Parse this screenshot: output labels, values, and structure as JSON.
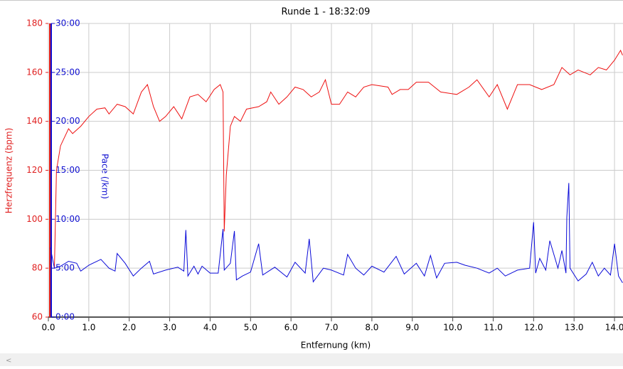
{
  "chart_data": {
    "type": "line",
    "title": "Runde 1 - 18:32:09",
    "xlabel": "Entfernung (km)",
    "ylabel": "Herzfrequenz (bpm)",
    "y2label": "Pace (/km)",
    "xlim": [
      0,
      14.21
    ],
    "ylim": [
      60,
      180
    ],
    "y2lim": [
      0,
      30
    ],
    "grid": true,
    "xticks": [
      {
        "value": 0,
        "label": "0.0"
      },
      {
        "value": 1,
        "label": "1.0"
      },
      {
        "value": 2,
        "label": "2.0"
      },
      {
        "value": 3,
        "label": "3.0"
      },
      {
        "value": 4,
        "label": "4.0"
      },
      {
        "value": 5,
        "label": "5.0"
      },
      {
        "value": 6,
        "label": "6.0"
      },
      {
        "value": 7,
        "label": "7.0"
      },
      {
        "value": 8,
        "label": "8.0"
      },
      {
        "value": 9,
        "label": "9.0"
      },
      {
        "value": 10,
        "label": "10.0"
      },
      {
        "value": 11,
        "label": "11.0"
      },
      {
        "value": 12,
        "label": "12.0"
      },
      {
        "value": 13,
        "label": "13.0"
      },
      {
        "value": 14,
        "label": "14.0"
      }
    ],
    "yticks": [
      60,
      80,
      100,
      120,
      140,
      160,
      180
    ],
    "y2ticks": [
      {
        "value": 0,
        "label": "0:00"
      },
      {
        "value": 5,
        "label": "5:00"
      },
      {
        "value": 10,
        "label": "10:00"
      },
      {
        "value": 15,
        "label": "15:00"
      },
      {
        "value": 20,
        "label": "20:00"
      },
      {
        "value": 25,
        "label": "25:00"
      },
      {
        "value": 30,
        "label": "30:00"
      }
    ],
    "ycolor": "#e02020",
    "y2color": "#1010d0",
    "series": [
      {
        "color": "#ee1111",
        "axis": "y",
        "x": [
          0.15,
          0.2,
          0.3,
          0.5,
          0.6,
          0.8,
          1.0,
          1.2,
          1.4,
          1.5,
          1.7,
          1.9,
          2.1,
          2.3,
          2.45,
          2.6,
          2.75,
          2.9,
          3.1,
          3.3,
          3.5,
          3.7,
          3.9,
          4.1,
          4.25,
          4.32,
          4.35,
          4.4,
          4.5,
          4.6,
          4.75,
          4.9,
          5.2,
          5.4,
          5.5,
          5.7,
          5.9,
          6.1,
          6.3,
          6.5,
          6.7,
          6.85,
          7.0,
          7.2,
          7.4,
          7.6,
          7.8,
          8.0,
          8.4,
          8.5,
          8.7,
          8.9,
          9.1,
          9.4,
          9.7,
          10.1,
          10.4,
          10.6,
          10.9,
          11.1,
          11.35,
          11.6,
          11.9,
          12.2,
          12.5,
          12.7,
          12.9,
          13.1,
          13.4,
          13.6,
          13.8,
          14.0,
          14.15,
          14.2
        ],
        "values": [
          80,
          120,
          130,
          137,
          135,
          138,
          142,
          145,
          145.5,
          143,
          147,
          146,
          143,
          152,
          155,
          146,
          140,
          142,
          146,
          141,
          150,
          151,
          148,
          153,
          155,
          152,
          95,
          118,
          138,
          142,
          140,
          145,
          146,
          148,
          152,
          147,
          150,
          154,
          153,
          150,
          152,
          157,
          147,
          147,
          152,
          150,
          154,
          155,
          154,
          151,
          153,
          153,
          156,
          156,
          152,
          151,
          154,
          157,
          150,
          155,
          145,
          155,
          155,
          153,
          155,
          162,
          159,
          161,
          159,
          162,
          161,
          165,
          169,
          167
        ]
      },
      {
        "color": "#0a0ad8",
        "axis": "y2",
        "x": [
          0.05,
          0.15,
          0.3,
          0.5,
          0.7,
          0.8,
          1.0,
          1.3,
          1.5,
          1.65,
          1.7,
          1.9,
          2.1,
          2.3,
          2.5,
          2.6,
          2.9,
          3.2,
          3.35,
          3.4,
          3.45,
          3.6,
          3.7,
          3.8,
          4.0,
          4.2,
          4.32,
          4.35,
          4.5,
          4.6,
          4.65,
          4.8,
          5.0,
          5.2,
          5.3,
          5.6,
          5.9,
          6.1,
          6.35,
          6.45,
          6.55,
          6.8,
          7.0,
          7.3,
          7.4,
          7.6,
          7.8,
          8.0,
          8.3,
          8.6,
          8.8,
          9.1,
          9.3,
          9.45,
          9.6,
          9.8,
          10.1,
          10.3,
          10.6,
          10.9,
          11.1,
          11.3,
          11.6,
          11.9,
          12.0,
          12.05,
          12.15,
          12.3,
          12.4,
          12.6,
          12.7,
          12.8,
          12.82,
          12.87,
          12.9,
          13.1,
          13.3,
          13.45,
          13.6,
          13.75,
          13.9,
          14.0,
          14.1,
          14.2
        ],
        "values": [
          7.1,
          5.0,
          5.2,
          5.7,
          5.5,
          4.7,
          5.3,
          5.9,
          5.0,
          4.7,
          6.5,
          5.5,
          4.2,
          5.0,
          5.7,
          4.4,
          4.8,
          5.1,
          4.7,
          8.9,
          4.2,
          5.2,
          4.4,
          5.2,
          4.5,
          4.5,
          9.0,
          4.8,
          5.5,
          8.8,
          3.8,
          4.2,
          4.6,
          7.5,
          4.3,
          5.1,
          4.1,
          5.6,
          4.5,
          8.0,
          3.6,
          5.0,
          4.8,
          4.3,
          6.4,
          5.0,
          4.3,
          5.2,
          4.6,
          6.2,
          4.4,
          5.5,
          4.2,
          6.3,
          4.0,
          5.5,
          5.6,
          5.3,
          5.0,
          4.5,
          5.0,
          4.2,
          4.8,
          5.0,
          9.7,
          4.5,
          6.0,
          4.8,
          7.8,
          5.0,
          6.8,
          4.5,
          10.2,
          13.7,
          5.0,
          3.7,
          4.4,
          5.6,
          4.2,
          5.0,
          4.3,
          7.5,
          4.2,
          3.5
        ]
      }
    ]
  }
}
